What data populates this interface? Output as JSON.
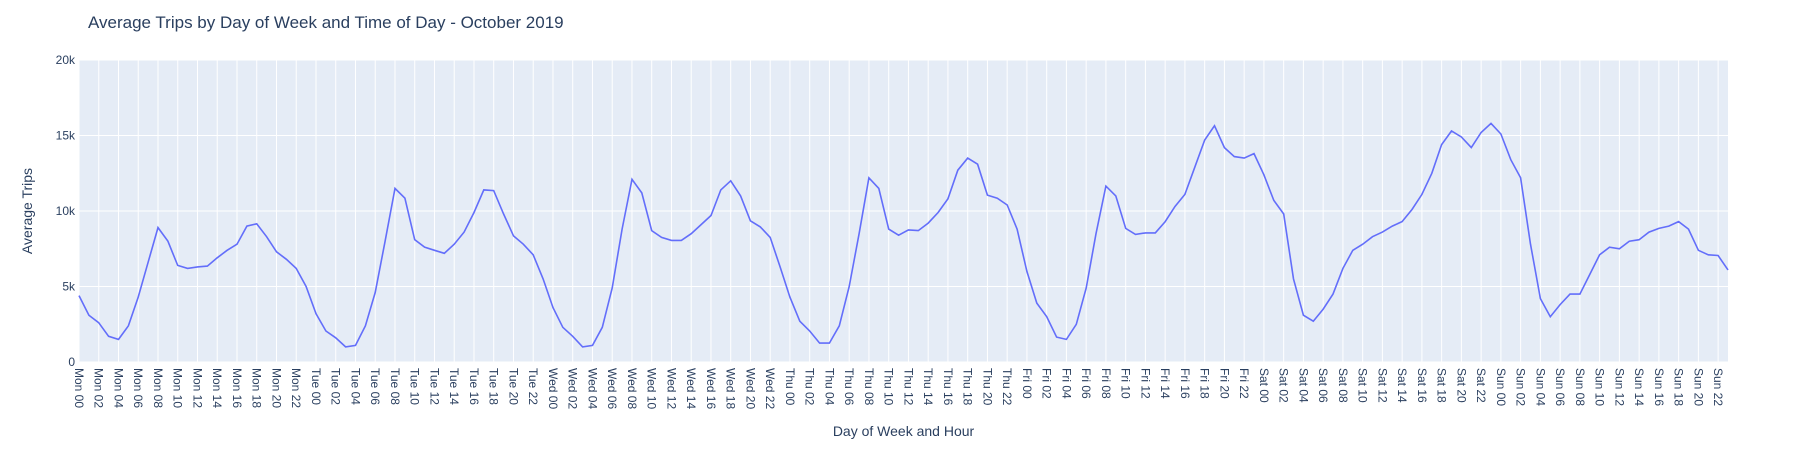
{
  "chart_data": {
    "type": "line",
    "title": "Average Trips by Day of Week and Time of Day - October 2019",
    "xlabel": "Day of Week and Hour",
    "ylabel": "Average Trips",
    "ylim": [
      0,
      20000
    ],
    "yticks": [
      0,
      5000,
      10000,
      15000,
      20000
    ],
    "ytick_labels": [
      "0",
      "5k",
      "10k",
      "15k",
      "20k"
    ],
    "grid": true,
    "legend": "none",
    "colors": {
      "line": "#636efa",
      "plot_bg": "#e5ecf6",
      "grid": "#ffffff",
      "text": "#2a3f5f"
    },
    "x": [
      "Mon 00",
      "Mon 01",
      "Mon 02",
      "Mon 03",
      "Mon 04",
      "Mon 05",
      "Mon 06",
      "Mon 07",
      "Mon 08",
      "Mon 09",
      "Mon 10",
      "Mon 11",
      "Mon 12",
      "Mon 13",
      "Mon 14",
      "Mon 15",
      "Mon 16",
      "Mon 17",
      "Mon 18",
      "Mon 19",
      "Mon 20",
      "Mon 21",
      "Mon 22",
      "Mon 23",
      "Tue 00",
      "Tue 01",
      "Tue 02",
      "Tue 03",
      "Tue 04",
      "Tue 05",
      "Tue 06",
      "Tue 07",
      "Tue 08",
      "Tue 09",
      "Tue 10",
      "Tue 11",
      "Tue 12",
      "Tue 13",
      "Tue 14",
      "Tue 15",
      "Tue 16",
      "Tue 17",
      "Tue 18",
      "Tue 19",
      "Tue 20",
      "Tue 21",
      "Tue 22",
      "Tue 23",
      "Wed 00",
      "Wed 01",
      "Wed 02",
      "Wed 03",
      "Wed 04",
      "Wed 05",
      "Wed 06",
      "Wed 07",
      "Wed 08",
      "Wed 09",
      "Wed 10",
      "Wed 11",
      "Wed 12",
      "Wed 13",
      "Wed 14",
      "Wed 15",
      "Wed 16",
      "Wed 17",
      "Wed 18",
      "Wed 19",
      "Wed 20",
      "Wed 21",
      "Wed 22",
      "Wed 23",
      "Thu 00",
      "Thu 01",
      "Thu 02",
      "Thu 03",
      "Thu 04",
      "Thu 05",
      "Thu 06",
      "Thu 07",
      "Thu 08",
      "Thu 09",
      "Thu 10",
      "Thu 11",
      "Thu 12",
      "Thu 13",
      "Thu 14",
      "Thu 15",
      "Thu 16",
      "Thu 17",
      "Thu 18",
      "Thu 19",
      "Thu 20",
      "Thu 21",
      "Thu 22",
      "Thu 23",
      "Fri 00",
      "Fri 01",
      "Fri 02",
      "Fri 03",
      "Fri 04",
      "Fri 05",
      "Fri 06",
      "Fri 07",
      "Fri 08",
      "Fri 09",
      "Fri 10",
      "Fri 11",
      "Fri 12",
      "Fri 13",
      "Fri 14",
      "Fri 15",
      "Fri 16",
      "Fri 17",
      "Fri 18",
      "Fri 19",
      "Fri 20",
      "Fri 21",
      "Fri 22",
      "Fri 23",
      "Sat 00",
      "Sat 01",
      "Sat 02",
      "Sat 03",
      "Sat 04",
      "Sat 05",
      "Sat 06",
      "Sat 07",
      "Sat 08",
      "Sat 09",
      "Sat 10",
      "Sat 11",
      "Sat 12",
      "Sat 13",
      "Sat 14",
      "Sat 15",
      "Sat 16",
      "Sat 17",
      "Sat 18",
      "Sat 19",
      "Sat 20",
      "Sat 21",
      "Sat 22",
      "Sat 23",
      "Sun 00",
      "Sun 01",
      "Sun 02",
      "Sun 03",
      "Sun 04",
      "Sun 05",
      "Sun 06",
      "Sun 07",
      "Sun 08",
      "Sun 09",
      "Sun 10",
      "Sun 11",
      "Sun 12",
      "Sun 13",
      "Sun 14",
      "Sun 15",
      "Sun 16",
      "Sun 17",
      "Sun 18",
      "Sun 19",
      "Sun 20",
      "Sun 21",
      "Sun 22",
      "Sun 23"
    ],
    "tick_every": 2,
    "series": [
      {
        "values": [
          4400,
          3100,
          2600,
          1700,
          1500,
          2400,
          4300,
          6600,
          8900,
          8000,
          6400,
          6200,
          6300,
          6350,
          6900,
          7400,
          7800,
          9000,
          9150,
          8300,
          7300,
          6800,
          6200,
          5000,
          3200,
          2050,
          1600,
          1000,
          1100,
          2400,
          4600,
          8000,
          11500,
          10850,
          8100,
          7600,
          7400,
          7200,
          7800,
          8600,
          9900,
          11400,
          11350,
          9800,
          8350,
          7800,
          7100,
          5500,
          3600,
          2300,
          1700,
          1000,
          1100,
          2300,
          4900,
          8800,
          12100,
          11200,
          8700,
          8250,
          8050,
          8050,
          8500,
          9100,
          9700,
          11400,
          12000,
          11000,
          9350,
          8950,
          8250,
          6300,
          4300,
          2700,
          2050,
          1250,
          1250,
          2400,
          5000,
          8500,
          12200,
          11500,
          8800,
          8400,
          8750,
          8700,
          9200,
          9900,
          10800,
          12700,
          13500,
          13100,
          11050,
          10850,
          10400,
          8800,
          6000,
          3900,
          3000,
          1650,
          1500,
          2500,
          4900,
          8500,
          11650,
          11000,
          8850,
          8450,
          8550,
          8550,
          9300,
          10300,
          11100,
          12900,
          14700,
          15650,
          14200,
          13600,
          13500,
          13800,
          12400,
          10700,
          9800,
          5500,
          3100,
          2700,
          3500,
          4500,
          6200,
          7400,
          7800,
          8300,
          8600,
          9000,
          9300,
          10100,
          11100,
          12500,
          14400,
          15300,
          14900,
          14200,
          15200,
          15800,
          15100,
          13400,
          12200,
          7800,
          4200,
          3000,
          3800,
          4500,
          4500,
          5800,
          7100,
          7600,
          7500,
          8000,
          8100,
          8600,
          8850,
          9000,
          9300,
          8800,
          7400,
          7100,
          7050,
          6100
        ]
      }
    ]
  }
}
